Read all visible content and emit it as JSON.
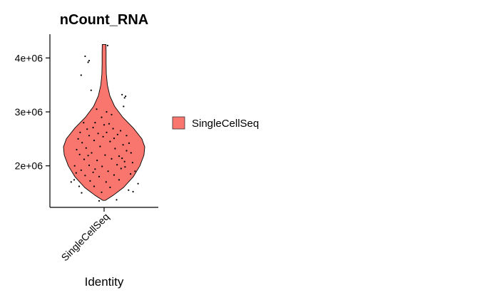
{
  "chart_data": {
    "type": "violin",
    "title": "nCount_RNA",
    "xlabel": "Identity",
    "ylabel": "",
    "categories": [
      "SingleCellSeq"
    ],
    "yticks": [
      {
        "value": 2000000,
        "label": "2e+06"
      },
      {
        "value": 3000000,
        "label": "3e+06"
      },
      {
        "value": 4000000,
        "label": "4e+06"
      }
    ],
    "ylim": [
      1230000,
      4440000
    ],
    "grid": false,
    "legend": {
      "position": "right",
      "entries": [
        {
          "label": "SingleCellSeq",
          "color": "#F8766D"
        }
      ]
    },
    "series": [
      {
        "category": "SingleCellSeq",
        "color": "#F8766D",
        "violin_min": 1360000,
        "violin_max": 4250000,
        "density_profile": [
          {
            "y": 1360000,
            "halfwidth": 0.03
          },
          {
            "y": 1450000,
            "halfwidth": 0.22
          },
          {
            "y": 1600000,
            "halfwidth": 0.48
          },
          {
            "y": 1800000,
            "halfwidth": 0.72
          },
          {
            "y": 2000000,
            "halfwidth": 0.88
          },
          {
            "y": 2200000,
            "halfwidth": 0.98
          },
          {
            "y": 2350000,
            "halfwidth": 1.0
          },
          {
            "y": 2500000,
            "halfwidth": 0.93
          },
          {
            "y": 2700000,
            "halfwidth": 0.72
          },
          {
            "y": 2900000,
            "halfwidth": 0.46
          },
          {
            "y": 3100000,
            "halfwidth": 0.26
          },
          {
            "y": 3300000,
            "halfwidth": 0.14
          },
          {
            "y": 3500000,
            "halfwidth": 0.08
          },
          {
            "y": 3700000,
            "halfwidth": 0.055
          },
          {
            "y": 3900000,
            "halfwidth": 0.05
          },
          {
            "y": 4100000,
            "halfwidth": 0.05
          },
          {
            "y": 4250000,
            "halfwidth": 0.045
          }
        ],
        "points": [
          {
            "x": -0.38,
            "y": 4030000
          },
          {
            "x": -0.3,
            "y": 3950000
          },
          {
            "x": -0.32,
            "y": 3920000
          },
          {
            "x": 0.07,
            "y": 4230000
          },
          {
            "x": -0.46,
            "y": 3680000
          },
          {
            "x": -0.26,
            "y": 3400000
          },
          {
            "x": 0.36,
            "y": 3320000
          },
          {
            "x": 0.43,
            "y": 3290000
          },
          {
            "x": 0.41,
            "y": 3260000
          },
          {
            "x": 0.39,
            "y": 3100000
          },
          {
            "x": -0.41,
            "y": 2800000
          },
          {
            "x": -0.18,
            "y": 2800000
          },
          {
            "x": 0.1,
            "y": 2780000
          },
          {
            "x": -0.05,
            "y": 2900000
          },
          {
            "x": 0.33,
            "y": 2650000
          },
          {
            "x": -0.48,
            "y": 2620000
          },
          {
            "x": 0.45,
            "y": 2560000
          },
          {
            "x": -0.52,
            "y": 2500000
          },
          {
            "x": 0.5,
            "y": 2420000
          },
          {
            "x": -0.55,
            "y": 2300000
          },
          {
            "x": 0.54,
            "y": 2240000
          },
          {
            "x": -0.59,
            "y": 2000000
          },
          {
            "x": 0.57,
            "y": 2060000
          },
          {
            "x": -0.56,
            "y": 1870000
          },
          {
            "x": 0.53,
            "y": 1850000
          },
          {
            "x": -0.6,
            "y": 1740000
          },
          {
            "x": 0.62,
            "y": 1900000
          },
          {
            "x": -0.66,
            "y": 1700000
          },
          {
            "x": 0.68,
            "y": 1670000
          },
          {
            "x": -0.5,
            "y": 1620000
          },
          {
            "x": 0.49,
            "y": 1550000
          },
          {
            "x": -0.45,
            "y": 1500000
          },
          {
            "x": 0.58,
            "y": 1520000
          },
          {
            "x": 0.25,
            "y": 1370000
          },
          {
            "x": -0.1,
            "y": 1350000
          },
          {
            "x": -0.34,
            "y": 2680000
          },
          {
            "x": -0.22,
            "y": 2710000
          },
          {
            "x": 0.0,
            "y": 2760000
          },
          {
            "x": 0.18,
            "y": 2690000
          },
          {
            "x": -0.3,
            "y": 2560000
          },
          {
            "x": -0.12,
            "y": 2600000
          },
          {
            "x": 0.05,
            "y": 2620000
          },
          {
            "x": 0.27,
            "y": 2580000
          },
          {
            "x": -0.44,
            "y": 2430000
          },
          {
            "x": -0.2,
            "y": 2470000
          },
          {
            "x": 0.12,
            "y": 2450000
          },
          {
            "x": 0.38,
            "y": 2390000
          },
          {
            "x": -0.36,
            "y": 2330000
          },
          {
            "x": -0.08,
            "y": 2360000
          },
          {
            "x": 0.22,
            "y": 2320000
          },
          {
            "x": 0.45,
            "y": 2280000
          },
          {
            "x": -0.49,
            "y": 2210000
          },
          {
            "x": -0.25,
            "y": 2240000
          },
          {
            "x": 0.02,
            "y": 2200000
          },
          {
            "x": 0.3,
            "y": 2180000
          },
          {
            "x": -0.4,
            "y": 2120000
          },
          {
            "x": -0.14,
            "y": 2100000
          },
          {
            "x": 0.15,
            "y": 2130000
          },
          {
            "x": 0.41,
            "y": 2080000
          },
          {
            "x": -0.3,
            "y": 2010000
          },
          {
            "x": -0.04,
            "y": 1990000
          },
          {
            "x": 0.26,
            "y": 2020000
          },
          {
            "x": -0.46,
            "y": 1920000
          },
          {
            "x": -0.18,
            "y": 1940000
          },
          {
            "x": 0.08,
            "y": 1900000
          },
          {
            "x": 0.34,
            "y": 1950000
          },
          {
            "x": -0.38,
            "y": 1820000
          },
          {
            "x": -0.1,
            "y": 1800000
          },
          {
            "x": 0.2,
            "y": 1830000
          },
          {
            "x": -0.28,
            "y": 1720000
          },
          {
            "x": 0.04,
            "y": 1700000
          },
          {
            "x": 0.3,
            "y": 1740000
          },
          {
            "x": -0.2,
            "y": 1620000
          },
          {
            "x": 0.12,
            "y": 1600000
          },
          {
            "x": -0.05,
            "y": 1510000
          },
          {
            "x": 0.05,
            "y": 3000000
          },
          {
            "x": -0.15,
            "y": 3050000
          },
          {
            "x": 0.15,
            "y": 2950000
          },
          {
            "x": -0.02,
            "y": 2540000
          },
          {
            "x": 0.2,
            "y": 2510000
          },
          {
            "x": -0.32,
            "y": 2190000
          },
          {
            "x": 0.36,
            "y": 2140000
          },
          {
            "x": -0.22,
            "y": 1880000
          },
          {
            "x": 0.42,
            "y": 1980000
          }
        ]
      }
    ]
  }
}
